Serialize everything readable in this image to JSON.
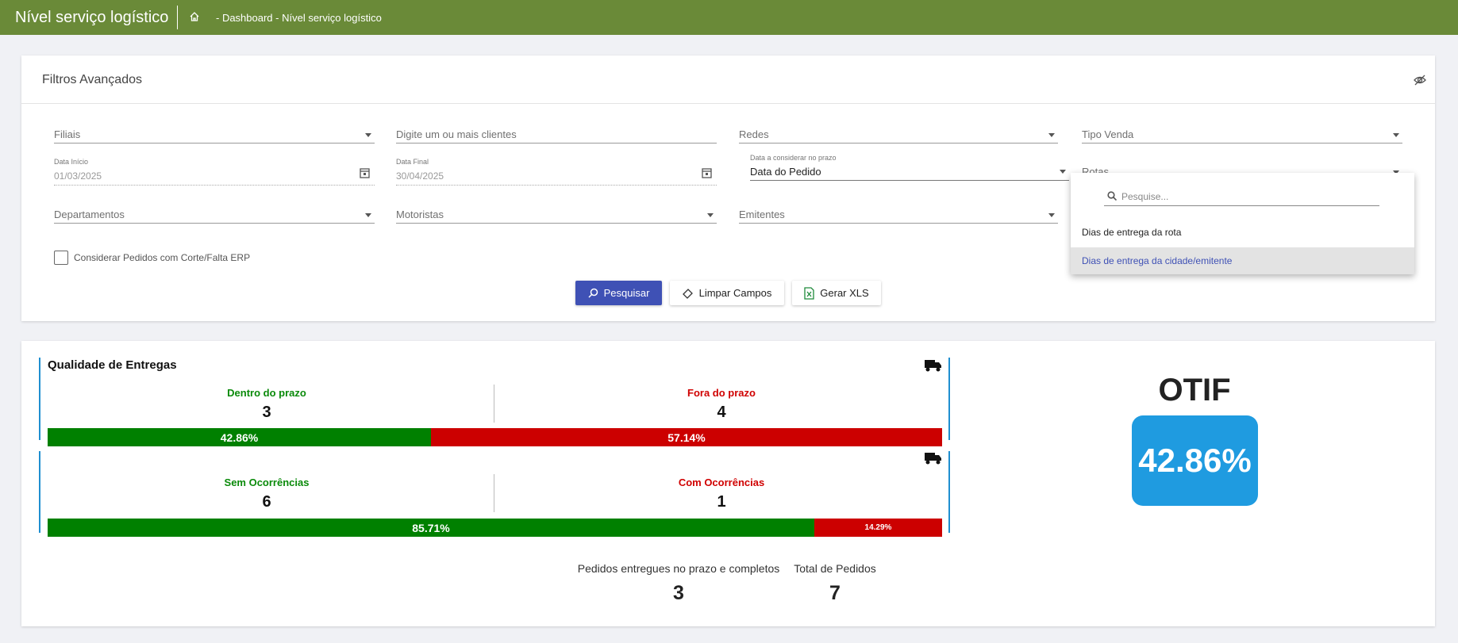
{
  "header": {
    "title": "Nível serviço logístico",
    "breadcrumb": "- Dashboard - Nível serviço logístico"
  },
  "filters": {
    "title": "Filtros Avançados",
    "filiais": "Filiais",
    "clientes": "Digite um ou mais clientes",
    "redes": "Redes",
    "tipo_venda": "Tipo Venda",
    "data_inicio": {
      "label": "Data Início",
      "value": "01/03/2025"
    },
    "data_final": {
      "label": "Data Final",
      "value": "30/04/2025"
    },
    "data_prazo": {
      "label": "Data a considerar no prazo",
      "value": "Data do Pedido"
    },
    "rotas": "Rotas",
    "departamentos": "Departamentos",
    "motoristas": "Motoristas",
    "emitentes": "Emitentes",
    "checkbox": "Considerar Pedidos com Corte/Falta ERP",
    "buttons": [
      "Pesquisar",
      "Limpar Campos",
      "Gerar XLS"
    ]
  },
  "dropdown": {
    "search_placeholder": "Pesquise...",
    "options": [
      "Dias de entrega da rota",
      "Dias de entrega da cidade/emitente"
    ]
  },
  "quality": {
    "title": "Qualidade de Entregas",
    "groups": [
      {
        "left_label": "Dentro do prazo",
        "left_value": 3,
        "right_label": "Fora do prazo",
        "right_value": 4,
        "left_pct": "42.86%",
        "right_pct": "57.14%"
      },
      {
        "left_label": "Sem Ocorrências",
        "left_value": 6,
        "right_label": "Com Ocorrências",
        "right_value": 1,
        "left_pct": "85.71%",
        "right_pct": "14.29%"
      }
    ]
  },
  "totals": [
    {
      "label": "Pedidos entregues no prazo e completos",
      "value": 3
    },
    {
      "label": "Total de Pedidos",
      "value": 7
    }
  ],
  "otif": {
    "title": "OTIF",
    "value": "42.86%"
  }
}
